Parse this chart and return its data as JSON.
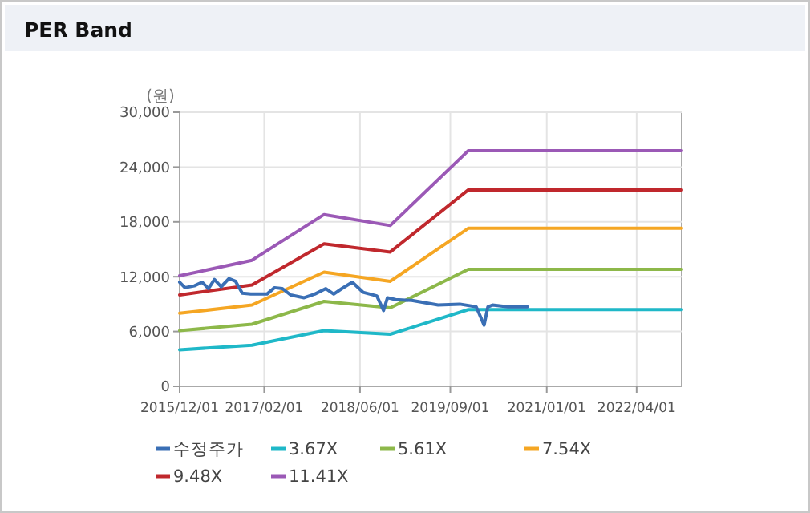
{
  "chart_data": {
    "type": "line",
    "title": "PER Band",
    "ylabel": "(원)",
    "x": [
      "2015-12-01",
      "2016-12-01",
      "2017-12-01",
      "2018-11-01",
      "2019-12-01",
      "2022-11-15"
    ],
    "xlim": [
      "2015-12-01",
      "2022-11-15"
    ],
    "xticks": [
      {
        "value": "2015-12-01",
        "label": "2015/12/01"
      },
      {
        "value": "2017-02-01",
        "label": "2017/02/01"
      },
      {
        "value": "2018-06-01",
        "label": "2018/06/01"
      },
      {
        "value": "2019-09-01",
        "label": "2019/09/01"
      },
      {
        "value": "2021-01-01",
        "label": "2021/01/01"
      },
      {
        "value": "2022-04-01",
        "label": "2022/04/01"
      }
    ],
    "ylim": [
      0,
      30000
    ],
    "yticks": [
      0,
      {
        "value": 6000,
        "label": "6,000"
      },
      {
        "value": 12000,
        "label": "12,000"
      },
      {
        "value": 18000,
        "label": "18,000"
      },
      {
        "value": 24000,
        "label": "24,000"
      },
      {
        "value": 30000,
        "label": "30,000"
      }
    ],
    "grid": true,
    "legend": "bottom",
    "marker": "none",
    "line_style": "solid",
    "series": [
      {
        "name": "수정주가",
        "color": "#3a6fb5",
        "x": [
          "2015-12-01",
          "2015-12-28",
          "2016-02-13",
          "2016-03-24",
          "2016-04-25",
          "2016-05-25",
          "2016-06-28",
          "2016-08-07",
          "2016-09-09",
          "2016-10-13",
          "2016-11-25",
          "2017-02-15",
          "2017-03-25",
          "2017-05-04",
          "2017-06-15",
          "2017-08-22",
          "2017-10-15",
          "2017-12-10",
          "2018-01-19",
          "2018-03-01",
          "2018-04-23",
          "2018-06-16",
          "2018-08-25",
          "2018-09-28",
          "2018-10-18",
          "2018-11-28",
          "2019-02-18",
          "2019-07-01",
          "2019-10-19",
          "2020-01-10",
          "2020-02-19",
          "2020-03-09",
          "2020-04-01",
          "2020-06-19",
          "2020-09-25"
        ],
        "values": [
          11400,
          10800,
          11000,
          11400,
          10700,
          11700,
          10900,
          11800,
          11500,
          10200,
          10100,
          10100,
          10800,
          10700,
          10000,
          9700,
          10100,
          10700,
          10100,
          10700,
          11400,
          10300,
          9900,
          8300,
          9700,
          9500,
          9400,
          8900,
          9000,
          8700,
          6700,
          8700,
          8900,
          8700,
          8700
        ]
      },
      {
        "name": "3.67X",
        "color": "#1fb8c8",
        "values": [
          4000,
          4500,
          6100,
          5700,
          8400,
          8400
        ]
      },
      {
        "name": "5.61X",
        "color": "#8db84a",
        "values": [
          6100,
          6800,
          9300,
          8600,
          12800,
          12800
        ]
      },
      {
        "name": "7.54X",
        "color": "#f5a623",
        "values": [
          8000,
          8900,
          12500,
          11500,
          17300,
          17300
        ]
      },
      {
        "name": "9.48X",
        "color": "#c0282d",
        "values": [
          10000,
          11100,
          15600,
          14700,
          21500,
          21500
        ]
      },
      {
        "name": "11.41X",
        "color": "#9b59b6",
        "values": [
          12100,
          13800,
          18800,
          17600,
          25800,
          25800
        ]
      }
    ]
  }
}
